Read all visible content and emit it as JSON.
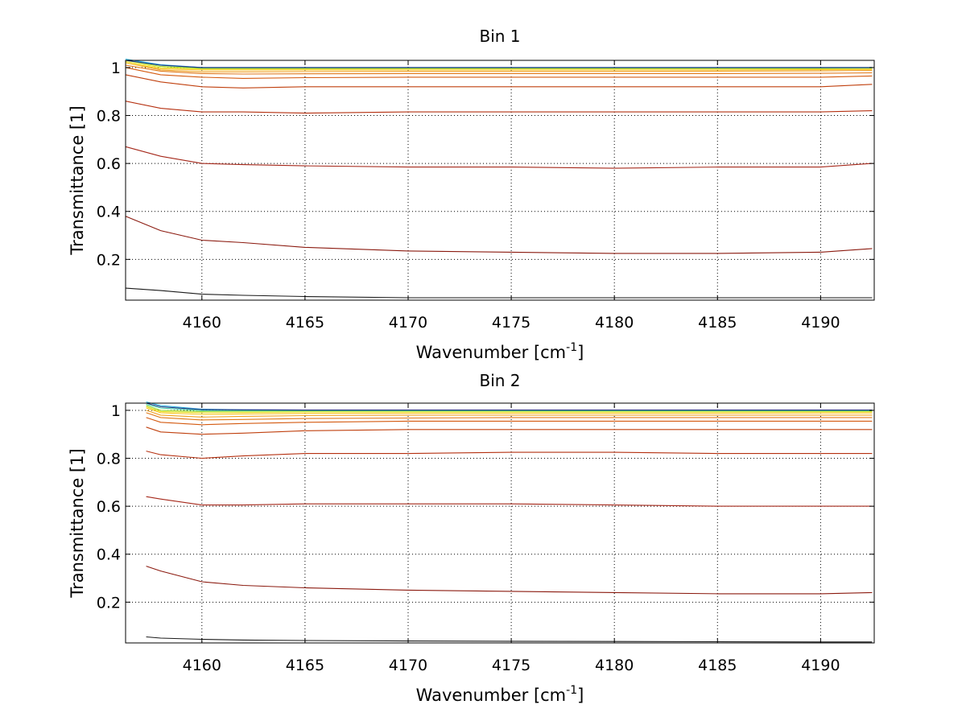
{
  "chart_data": [
    {
      "type": "line",
      "title": "Bin 1",
      "xlabel": "Wavenumber [cm",
      "xlabel_sup": "-1",
      "xlabel_end": "]",
      "ylabel": "Transmittance [1]",
      "xlim": [
        4156.3,
        4192.6
      ],
      "ylim": [
        0.03,
        1.03
      ],
      "xticks": [
        4160,
        4165,
        4170,
        4175,
        4180,
        4185,
        4190
      ],
      "yticks": [
        0.2,
        0.4,
        0.6,
        0.8,
        1
      ],
      "ytick_labels": [
        "0.2",
        "0.4",
        "0.6",
        "0.8",
        "1"
      ],
      "grid": true,
      "x": [
        4156.3,
        4158,
        4160,
        4162,
        4165,
        4170,
        4175,
        4180,
        4185,
        4190,
        4192.5
      ],
      "series": [
        {
          "color": "#1a1a1a",
          "values": [
            0.08,
            0.07,
            0.055,
            0.05,
            0.045,
            0.04,
            0.04,
            0.04,
            0.04,
            0.04,
            0.04
          ]
        },
        {
          "color": "#8b1a0f",
          "values": [
            0.38,
            0.32,
            0.28,
            0.27,
            0.25,
            0.235,
            0.23,
            0.225,
            0.225,
            0.23,
            0.245
          ]
        },
        {
          "color": "#a5281a",
          "values": [
            0.67,
            0.63,
            0.6,
            0.595,
            0.59,
            0.585,
            0.585,
            0.58,
            0.585,
            0.585,
            0.6
          ]
        },
        {
          "color": "#b53010",
          "values": [
            0.86,
            0.83,
            0.815,
            0.815,
            0.81,
            0.815,
            0.815,
            0.815,
            0.815,
            0.815,
            0.82
          ]
        },
        {
          "color": "#c0400e",
          "values": [
            0.97,
            0.94,
            0.92,
            0.915,
            0.92,
            0.92,
            0.92,
            0.92,
            0.92,
            0.92,
            0.93
          ]
        },
        {
          "color": "#d45a10",
          "values": [
            1.0,
            0.97,
            0.96,
            0.955,
            0.958,
            0.96,
            0.96,
            0.96,
            0.96,
            0.96,
            0.965
          ]
        },
        {
          "color": "#e07818",
          "values": [
            1.01,
            0.985,
            0.975,
            0.973,
            0.974,
            0.975,
            0.975,
            0.975,
            0.975,
            0.976,
            0.978
          ]
        },
        {
          "color": "#f0a020",
          "values": [
            1.02,
            0.99,
            0.982,
            0.982,
            0.983,
            0.984,
            0.984,
            0.984,
            0.985,
            0.986,
            0.988
          ]
        },
        {
          "color": "#f7c520",
          "values": [
            1.02,
            0.995,
            0.99,
            0.99,
            0.99,
            0.99,
            0.99,
            0.99,
            0.99,
            0.991,
            0.992
          ]
        },
        {
          "color": "#e8e020",
          "values": [
            1.025,
            1.0,
            0.994,
            0.994,
            0.994,
            0.995,
            0.995,
            0.995,
            0.995,
            0.995,
            0.996
          ]
        },
        {
          "color": "#9ad830",
          "values": [
            1.03,
            1.005,
            0.997,
            0.997,
            0.997,
            0.997,
            0.997,
            0.997,
            0.997,
            0.997,
            0.998
          ]
        },
        {
          "color": "#38c8a0",
          "values": [
            1.03,
            1.01,
            0.999,
            0.999,
            0.999,
            0.999,
            0.999,
            0.999,
            0.999,
            0.999,
            0.999
          ]
        },
        {
          "color": "#20b0e0",
          "values": [
            1.035,
            1.012,
            1.0,
            1.0,
            1.0,
            1.0,
            1.0,
            1.0,
            1.0,
            1.0,
            1.0
          ]
        },
        {
          "color": "#203080",
          "values": [
            1.03,
            1.01,
            1.0,
            1.0,
            1.0,
            1.0,
            1.0,
            1.0,
            1.0,
            1.0,
            1.0
          ]
        }
      ]
    },
    {
      "type": "line",
      "title": "Bin 2",
      "xlabel": "Wavenumber [cm",
      "xlabel_sup": "-1",
      "xlabel_end": "]",
      "ylabel": "Transmittance [1]",
      "xlim": [
        4156.3,
        4192.6
      ],
      "ylim": [
        0.03,
        1.03
      ],
      "xticks": [
        4160,
        4165,
        4170,
        4175,
        4180,
        4185,
        4190
      ],
      "yticks": [
        0.2,
        0.4,
        0.6,
        0.8,
        1
      ],
      "ytick_labels": [
        "0.2",
        "0.4",
        "0.6",
        "0.8",
        "1"
      ],
      "grid": true,
      "x": [
        4157.3,
        4158,
        4160,
        4162,
        4165,
        4170,
        4175,
        4180,
        4185,
        4190,
        4192.5
      ],
      "series": [
        {
          "color": "#1a1a1a",
          "values": [
            0.055,
            0.05,
            0.045,
            0.042,
            0.04,
            0.038,
            0.037,
            0.036,
            0.035,
            0.034,
            0.034
          ]
        },
        {
          "color": "#8b1a0f",
          "values": [
            0.35,
            0.33,
            0.285,
            0.27,
            0.26,
            0.25,
            0.245,
            0.24,
            0.235,
            0.235,
            0.24
          ]
        },
        {
          "color": "#a5281a",
          "values": [
            0.64,
            0.63,
            0.605,
            0.605,
            0.61,
            0.61,
            0.61,
            0.605,
            0.6,
            0.6,
            0.6
          ]
        },
        {
          "color": "#b53010",
          "values": [
            0.83,
            0.815,
            0.8,
            0.81,
            0.82,
            0.82,
            0.825,
            0.825,
            0.82,
            0.82,
            0.82
          ]
        },
        {
          "color": "#c0400e",
          "values": [
            0.93,
            0.91,
            0.9,
            0.905,
            0.915,
            0.92,
            0.92,
            0.92,
            0.92,
            0.92,
            0.92
          ]
        },
        {
          "color": "#d45a10",
          "values": [
            0.97,
            0.95,
            0.94,
            0.945,
            0.95,
            0.955,
            0.955,
            0.955,
            0.955,
            0.955,
            0.955
          ]
        },
        {
          "color": "#e07818",
          "values": [
            0.99,
            0.97,
            0.96,
            0.962,
            0.966,
            0.968,
            0.97,
            0.97,
            0.97,
            0.97,
            0.97
          ]
        },
        {
          "color": "#f0a020",
          "values": [
            1.0,
            0.98,
            0.972,
            0.975,
            0.978,
            0.98,
            0.98,
            0.98,
            0.98,
            0.98,
            0.98
          ]
        },
        {
          "color": "#f7c520",
          "values": [
            1.01,
            0.99,
            0.983,
            0.985,
            0.987,
            0.988,
            0.988,
            0.988,
            0.988,
            0.989,
            0.989
          ]
        },
        {
          "color": "#e8e020",
          "values": [
            1.015,
            0.995,
            0.99,
            0.991,
            0.993,
            0.993,
            0.993,
            0.993,
            0.993,
            0.994,
            0.994
          ]
        },
        {
          "color": "#9ad830",
          "values": [
            1.02,
            1.0,
            0.995,
            0.996,
            0.997,
            0.997,
            0.997,
            0.997,
            0.997,
            0.997,
            0.997
          ]
        },
        {
          "color": "#38c8a0",
          "values": [
            1.025,
            1.01,
            0.999,
            0.999,
            0.999,
            0.999,
            0.999,
            0.999,
            0.999,
            0.999,
            0.999
          ]
        },
        {
          "color": "#20b0e0",
          "values": [
            1.035,
            1.02,
            1.005,
            1.002,
            1.001,
            1.001,
            1.001,
            1.001,
            1.001,
            1.001,
            1.001
          ]
        },
        {
          "color": "#203080",
          "values": [
            1.03,
            1.015,
            1.003,
            1.002,
            1.001,
            1.001,
            1.001,
            1.001,
            1.001,
            1.001,
            1.001
          ]
        }
      ]
    }
  ]
}
